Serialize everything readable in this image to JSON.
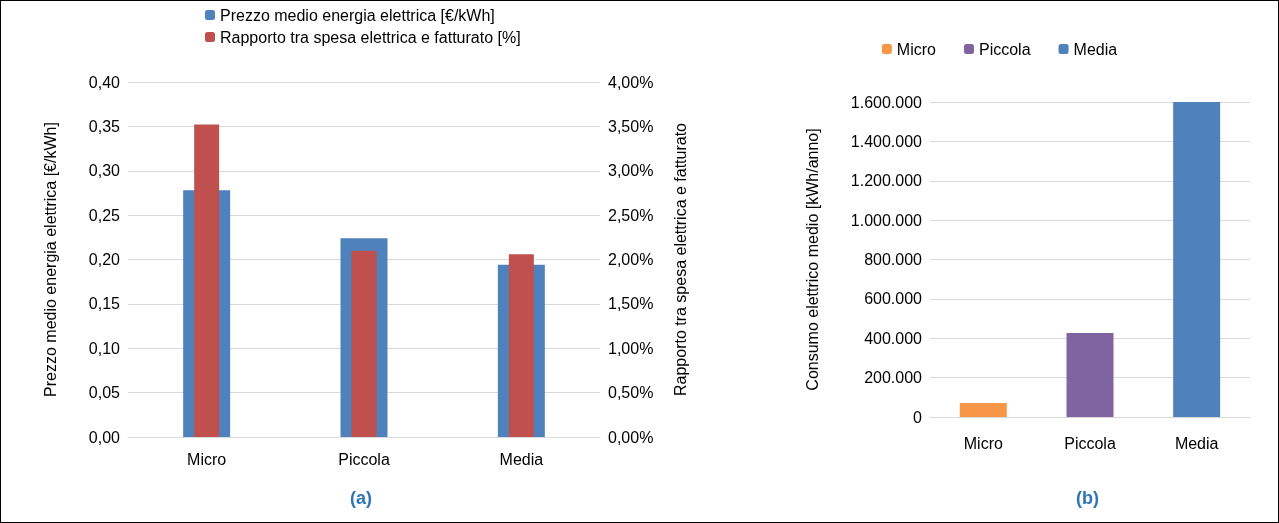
{
  "chart_data": [
    {
      "type": "bar",
      "categories": [
        "Micro",
        "Piccola",
        "Media"
      ],
      "ylabel": "Prezzo medio energia elettrica [€/kWh]",
      "y2label": "Rapporto tra spesa elettrica e fatturato",
      "series": [
        {
          "name": "Prezzo medio energia elettrica [€/kWh]",
          "color": "#4f81bd",
          "values": [
            0.278,
            0.224,
            0.194
          ]
        },
        {
          "name": "Rapporto tra spesa elettrica e fatturato [%]",
          "color": "#c0504d",
          "values": [
            3.52,
            2.1,
            2.06
          ],
          "axis": "y2"
        }
      ],
      "ylim": [
        0,
        0.4
      ],
      "yticks": [
        {
          "value": 0,
          "label": "0,00"
        },
        {
          "value": 0.05,
          "label": "0,05"
        },
        {
          "value": 0.1,
          "label": "0,10"
        },
        {
          "value": 0.15,
          "label": "0,15"
        },
        {
          "value": 0.2,
          "label": "0,20"
        },
        {
          "value": 0.25,
          "label": "0,25"
        },
        {
          "value": 0.3,
          "label": "0,30"
        },
        {
          "value": 0.35,
          "label": "0,35"
        },
        {
          "value": 0.4,
          "label": "0,40"
        }
      ],
      "y2lim": [
        0,
        4
      ],
      "y2ticks": [
        {
          "value": 0,
          "label": "0,00%"
        },
        {
          "value": 0.5,
          "label": "0,50%"
        },
        {
          "value": 1,
          "label": "1,00%"
        },
        {
          "value": 1.5,
          "label": "1,50%"
        },
        {
          "value": 2,
          "label": "2,00%"
        },
        {
          "value": 2.5,
          "label": "2,50%"
        },
        {
          "value": 3,
          "label": "3,00%"
        },
        {
          "value": 3.5,
          "label": "3,50%"
        },
        {
          "value": 4,
          "label": "4,00%"
        }
      ],
      "grid": "y",
      "legend": "top",
      "annotations": [
        "(a)"
      ]
    },
    {
      "type": "bar",
      "categories": [
        "Micro",
        "Piccola",
        "Media"
      ],
      "ylabel": "Consumo elettrico medio [kWh/anno]",
      "stacked": true,
      "series": [
        {
          "name": "Micro",
          "color": "#f79646",
          "values": [
            71000,
            null,
            null
          ]
        },
        {
          "name": "Piccola",
          "color": "#8064a2",
          "values": [
            null,
            427000,
            null
          ]
        },
        {
          "name": "Media",
          "color": "#4f81bd",
          "values": [
            null,
            null,
            1600000
          ]
        }
      ],
      "ylim": [
        0,
        1600000
      ],
      "yticks": [
        0,
        {
          "value": 200000,
          "label": "200.000"
        },
        {
          "value": 400000,
          "label": "400.000"
        },
        {
          "value": 600000,
          "label": "600.000"
        },
        {
          "value": 800000,
          "label": "800.000"
        },
        {
          "value": 1000000,
          "label": "1.000.000"
        },
        {
          "value": 1200000,
          "label": "1.200.000"
        },
        {
          "value": 1400000,
          "label": "1.400.000"
        },
        {
          "value": 1600000,
          "label": "1.600.000"
        }
      ],
      "grid": "y",
      "legend": "top",
      "annotations": [
        "(b)"
      ]
    }
  ]
}
